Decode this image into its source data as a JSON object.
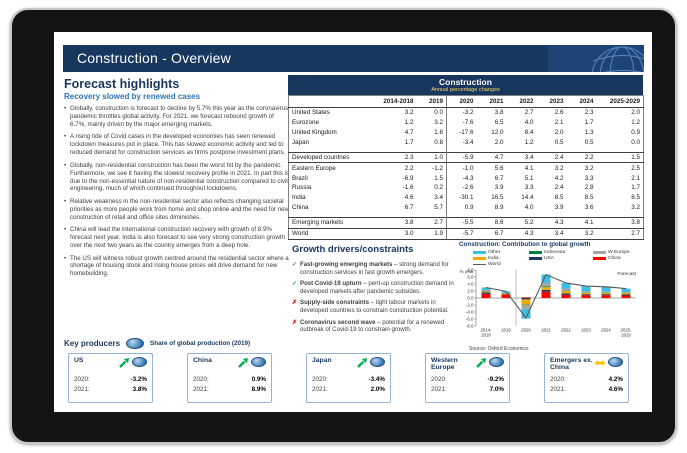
{
  "slide": {
    "title": "Construction - Overview"
  },
  "forecast": {
    "title": "Forecast highlights",
    "subtitle": "Recovery slowed by renewed cases",
    "bullets": [
      "Globally, construction is forecast to decline by 5.7% this year as the coronavirus pandemic throttles global activity. For 2021, we forecast rebound growth of 6.7%, mainly driven by the major emerging markets.",
      "A rising tide of Covid cases in the developed economies has seen renewed lockdown measures put in place. This has slowed economic activity and led to reduced demand for construction services as firms postpone investment plans.",
      "Globally, non-residential construction has been the worst hit by the pandemic. Furthermore, we see it having the slowest recovery profile in 2021. In part this is due to the non-essential nature of non-residential construction compared to civil engineering, much of which continued throughout lockdowns.",
      "Relative weakness in the non-residential sector also reflects changing societal priorities as more people work from home and shop online and the need for new construction of retail and office sites diminishes.",
      "China will lead the international construction recovery with growth of 8.9% forecast next year. India is also forecast to see very strong construction growth over the next two years as the country emerges from a deep hole.",
      "The US will witness robust growth centred around the residential sector where a shortage of housing stock and rising house prices will drive demand for new homebuilding."
    ]
  },
  "table": {
    "title": "Construction",
    "subtitle": "Annual percentage changes",
    "columns": [
      "2014-2018",
      "2019",
      "2020",
      "2021",
      "2022",
      "2023",
      "2024",
      "2025-2029"
    ],
    "rows": [
      {
        "label": "United States",
        "values": [
          "3.2",
          "0.0",
          "-3.2",
          "3.8",
          "2.7",
          "2.6",
          "2.3",
          "2.0"
        ]
      },
      {
        "label": "Eurozone",
        "values": [
          "1.2",
          "3.2",
          "-7.6",
          "6.5",
          "4.0",
          "2.1",
          "1.7",
          "1.2"
        ]
      },
      {
        "label": "United Kingdom",
        "values": [
          "4.7",
          "1.8",
          "-17.6",
          "12.0",
          "8.4",
          "2.0",
          "1.3",
          "0.9"
        ]
      },
      {
        "label": "Japan",
        "values": [
          "1.7",
          "0.8",
          "-3.4",
          "2.0",
          "1.2",
          "0.5",
          "0.5",
          "0.0"
        ]
      },
      {
        "label": "Developed countries",
        "values": [
          "2.3",
          "1.0",
          "-5.9",
          "4.7",
          "3.4",
          "2.4",
          "2.2",
          "1.5"
        ],
        "style": "subtotal",
        "spacer_before": true
      },
      {
        "label": "Eastern Europe",
        "values": [
          "2.2",
          "-1.2",
          "-1.0",
          "5.6",
          "4.1",
          "3.2",
          "3.2",
          "2.5"
        ]
      },
      {
        "label": "Brazil",
        "values": [
          "-6.9",
          "1.5",
          "-4.3",
          "6.7",
          "5.1",
          "4.2",
          "3.3",
          "2.1"
        ]
      },
      {
        "label": "Russia",
        "values": [
          "-1.6",
          "0.2",
          "-2.6",
          "3.9",
          "3.3",
          "2.4",
          "2.8",
          "1.7"
        ]
      },
      {
        "label": "India",
        "values": [
          "4.6",
          "3.4",
          "-30.1",
          "16.5",
          "14.4",
          "8.5",
          "8.5",
          "8.5"
        ]
      },
      {
        "label": "China",
        "values": [
          "6.7",
          "5.7",
          "0.9",
          "8.9",
          "4.0",
          "3.9",
          "3.6",
          "3.2"
        ]
      },
      {
        "label": "Emerging markets",
        "values": [
          "3.8",
          "2.7",
          "-5.5",
          "8.6",
          "5.2",
          "4.3",
          "4.1",
          "3.8"
        ],
        "style": "subtotal",
        "spacer_before": true
      },
      {
        "label": "World",
        "values": [
          "3.0",
          "1.9",
          "-5.7",
          "6.7",
          "4.3",
          "3.4",
          "3.2",
          "2.7"
        ],
        "style": "total"
      }
    ]
  },
  "growth": {
    "title": "Growth drivers/constraints",
    "items": [
      {
        "mark": "check",
        "bold": "Fast-growing emerging markets",
        "rest": " – strong demand for construction services in fast growth emergers."
      },
      {
        "mark": "check",
        "bold": "Post Covid-19 upturn",
        "rest": " – pent-up construction demand in developed markets after pandemic subsides."
      },
      {
        "mark": "cross",
        "bold": "Supply-side constraints",
        "rest": " – tight labour markets in developed countries to constrain construction potential."
      },
      {
        "mark": "cross",
        "bold": "Coronavirus second wave",
        "rest": " – potential for a renewed outbreak of Covid-19 to constrain growth."
      }
    ]
  },
  "chart_data": {
    "type": "bar",
    "subtype": "stacked-bars-with-line",
    "title": "Construction: Contribution to global growth",
    "ylabel": "% year",
    "forecast_label": "Forecast",
    "source": "Source: Oxford Economics",
    "categories": [
      "2014-2018",
      "2019",
      "2020",
      "2021",
      "2022",
      "2023",
      "2024",
      "2025-2029"
    ],
    "ylim": [
      -8,
      8
    ],
    "ytick_step": 2,
    "forecast_divider_after_index": 1,
    "series": [
      {
        "name": "China",
        "color": "#FF0000",
        "values": [
          1.2,
          1.0,
          0.2,
          1.8,
          0.9,
          0.8,
          0.8,
          0.7
        ]
      },
      {
        "name": "USA",
        "color": "#1F3864",
        "values": [
          0.4,
          0.0,
          -0.4,
          0.5,
          0.4,
          0.3,
          0.3,
          0.3
        ]
      },
      {
        "name": "India",
        "color": "#F0AB00",
        "values": [
          0.3,
          0.2,
          -1.5,
          0.8,
          0.7,
          0.4,
          0.4,
          0.4
        ]
      },
      {
        "name": "Indonesia",
        "color": "#00823B",
        "values": [
          0.1,
          0.1,
          -0.1,
          0.2,
          0.1,
          0.1,
          0.1,
          0.1
        ]
      },
      {
        "name": "W Europe",
        "color": "#A6A6A6",
        "values": [
          0.3,
          0.2,
          -1.2,
          1.0,
          0.6,
          0.3,
          0.2,
          0.2
        ]
      },
      {
        "name": "Other",
        "color": "#3DBDE4",
        "values": [
          0.7,
          0.4,
          -2.7,
          2.4,
          1.6,
          1.5,
          1.4,
          1.0
        ]
      }
    ],
    "line": {
      "name": "World",
      "color": "#595959",
      "values": [
        3.0,
        1.9,
        -5.7,
        6.7,
        4.3,
        3.4,
        3.2,
        2.7
      ]
    },
    "legend_order": [
      "Other",
      "Indonesia",
      "W Europe",
      "India",
      "USA",
      "China",
      "World"
    ]
  },
  "key_producers": {
    "title": "Key producers",
    "note": "Share of global production (2019)",
    "year_labels": [
      "2020:",
      "2021:"
    ],
    "cards": [
      {
        "name": "US",
        "arrow": "up",
        "y2020": "-3.2%",
        "y2021": "3.8%"
      },
      {
        "name": "China",
        "arrow": "up",
        "y2020": "0.9%",
        "y2021": "8.9%"
      },
      {
        "name": "Japan",
        "arrow": "up",
        "y2020": "-3.4%",
        "y2021": "2.0%"
      },
      {
        "name": "Western Europe",
        "arrow": "up",
        "y2020": "-9.2%",
        "y2021": "7.0%"
      },
      {
        "name": "Emergers ex. China",
        "arrow": "flat",
        "y2020": "4.2%",
        "y2021": "4.6%"
      }
    ]
  }
}
